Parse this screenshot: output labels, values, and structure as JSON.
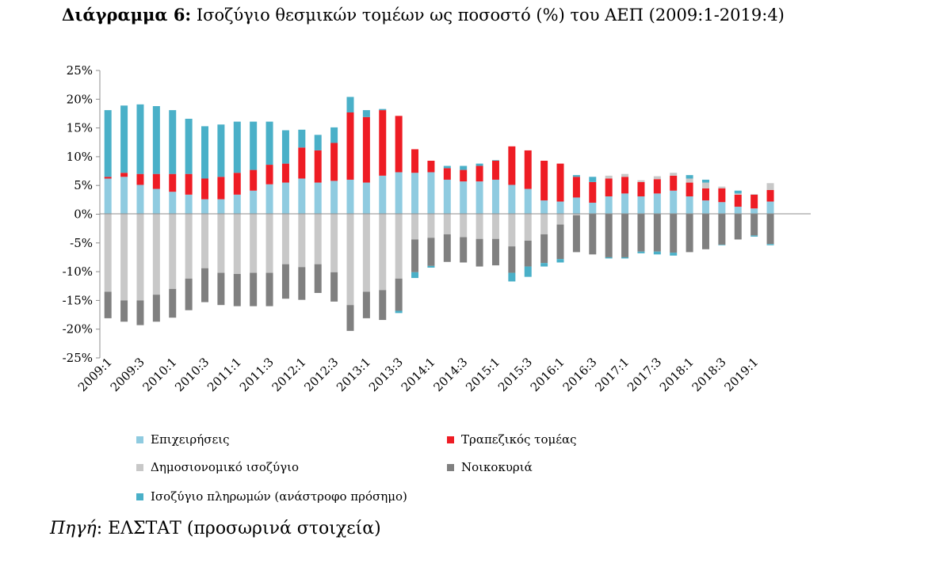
{
  "title": {
    "bold": "Διάγραμμα 6:",
    "rest": " Ισοζύγιο θεσμικών τομέων ως ποσοστό (%) του ΑΕΠ (2009:1-2019:4)"
  },
  "source": {
    "label": "Πηγή",
    "text": ": ΕΛΣΤΑΤ (προσωρινά στοιχεία)"
  },
  "chart_data": {
    "type": "bar",
    "stacked": true,
    "categories": [
      "2009:1",
      "2009:2",
      "2009:3",
      "2009:4",
      "2010:1",
      "2010:2",
      "2010:3",
      "2010:4",
      "2011:1",
      "2011:2",
      "2011:3",
      "2011:4",
      "2012:1",
      "2012:2",
      "2012:3",
      "2012:4",
      "2013:1",
      "2013:2",
      "2013:3",
      "2013:4",
      "2014:1",
      "2014:2",
      "2014:3",
      "2014:4",
      "2015:1",
      "2015:2",
      "2015:3",
      "2015:4",
      "2016:1",
      "2016:2",
      "2016:3",
      "2016:4",
      "2017:1",
      "2017:2",
      "2017:3",
      "2017:4",
      "2018:1",
      "2018:2",
      "2018:3",
      "2018:4",
      "2019:1",
      "2019:2",
      "2019:3",
      "2019:4"
    ],
    "tick_labels": [
      "2009:1",
      "2009:3",
      "2010:1",
      "2010:3",
      "2011:1",
      "2011:3",
      "2012:1",
      "2012:3",
      "2013:1",
      "2013:3",
      "2014:1",
      "2014:3",
      "2015:1",
      "2015:3",
      "2016:1",
      "2016:3",
      "2017:1",
      "2017:3",
      "2018:1",
      "2018:3",
      "2019:1"
    ],
    "y_ticks": [
      "25%",
      "20%",
      "15%",
      "10%",
      "5%",
      "0%",
      "-5%",
      "-10%",
      "-15%",
      "-20%",
      "-25%"
    ],
    "ylim": [
      -25,
      25
    ],
    "series": [
      {
        "name": "Επιχειρήσεις",
        "color": "#8fcbe0",
        "values": [
          6.2,
          6.5,
          5.1,
          4.4,
          3.9,
          3.4,
          2.6,
          2.6,
          3.4,
          4.1,
          5.2,
          5.5,
          6.2,
          5.5,
          5.8,
          6.0,
          5.5,
          6.7,
          7.3,
          7.2,
          7.3,
          6.0,
          5.7,
          5.7,
          6.0,
          5.1,
          4.4,
          2.4,
          2.2,
          2.9,
          2.0,
          3.1,
          3.6,
          3.1,
          3.6,
          4.1,
          3.1,
          2.4,
          2.1,
          1.3,
          1.0,
          2.2,
          0,
          0
        ]
      },
      {
        "name": "Τραπεζικός τομέας",
        "color": "#ee1c24",
        "values": [
          0.3,
          0.7,
          1.9,
          2.6,
          3.1,
          3.6,
          3.6,
          3.9,
          3.8,
          3.6,
          3.4,
          3.3,
          5.4,
          5.6,
          6.6,
          11.7,
          11.4,
          11.4,
          9.8,
          4.1,
          2.0,
          2.0,
          2.0,
          2.7,
          3.3,
          6.7,
          6.7,
          6.9,
          6.6,
          3.6,
          3.6,
          3.1,
          2.9,
          2.5,
          2.5,
          2.6,
          2.4,
          2.1,
          2.4,
          2.1,
          2.4,
          2.0,
          0,
          0
        ]
      },
      {
        "name": "Δημοσιονομικό ισοζύγιο",
        "color": "#c8c8c8",
        "values": [
          -13.5,
          -15.0,
          -15.0,
          -14.0,
          -13.0,
          -11.2,
          -9.4,
          -10.2,
          -10.4,
          -10.2,
          -10.2,
          -8.7,
          -9.2,
          -8.7,
          -10.1,
          -15.8,
          -13.5,
          -13.2,
          -11.2,
          -4.4,
          -4.1,
          -3.5,
          -4.0,
          -4.3,
          -4.3,
          -5.6,
          -4.6,
          -3.5,
          -1.8,
          -0.2,
          0.0,
          0.5,
          0.5,
          0.3,
          0.5,
          0.5,
          0.7,
          1.0,
          0.3,
          0.2,
          0.1,
          1.2,
          0,
          0
        ]
      },
      {
        "name": "Νοικοκυριά",
        "color": "#808080",
        "values": [
          -4.6,
          -3.7,
          -4.3,
          -4.7,
          -5.0,
          -5.5,
          -5.9,
          -5.6,
          -5.6,
          -5.8,
          -5.8,
          -6.0,
          -5.7,
          -5.0,
          -5.1,
          -4.5,
          -4.6,
          -5.2,
          -5.6,
          -5.7,
          -4.9,
          -4.8,
          -4.4,
          -4.8,
          -4.6,
          -4.6,
          -4.5,
          -5.0,
          -6.0,
          -6.4,
          -7.0,
          -7.5,
          -7.5,
          -6.5,
          -6.5,
          -6.7,
          -6.6,
          -6.1,
          -5.3,
          -4.4,
          -3.7,
          -5.2,
          0,
          0
        ]
      },
      {
        "name": "Ισοζύγιο πληρωμών (ανάστροφο πρόσημο)",
        "color": "#4ab0c8",
        "values": [
          11.6,
          11.7,
          12.1,
          11.8,
          11.1,
          9.6,
          9.1,
          9.1,
          8.9,
          8.4,
          7.5,
          5.8,
          3.1,
          2.7,
          2.7,
          2.7,
          1.2,
          0.2,
          -0.4,
          -1.0,
          -0.3,
          0.4,
          0.7,
          0.4,
          0.1,
          -1.5,
          -1.8,
          -0.6,
          -0.6,
          0.3,
          0.9,
          -0.2,
          -0.2,
          -0.3,
          -0.5,
          -0.5,
          0.6,
          0.5,
          -0.1,
          0.5,
          -0.2,
          -0.2,
          0,
          0
        ]
      }
    ]
  },
  "legend": [
    {
      "label": "Επιχειρήσεις",
      "color": "#8fcbe0"
    },
    {
      "label": "Τραπεζικός τομέας",
      "color": "#ee1c24"
    },
    {
      "label": "Δημοσιονομικό ισοζύγιο",
      "color": "#c8c8c8"
    },
    {
      "label": "Νοικοκυριά",
      "color": "#808080"
    },
    {
      "label": "Ισοζύγιο πληρωμών (ανάστροφο πρόσημο)",
      "color": "#4ab0c8"
    }
  ]
}
